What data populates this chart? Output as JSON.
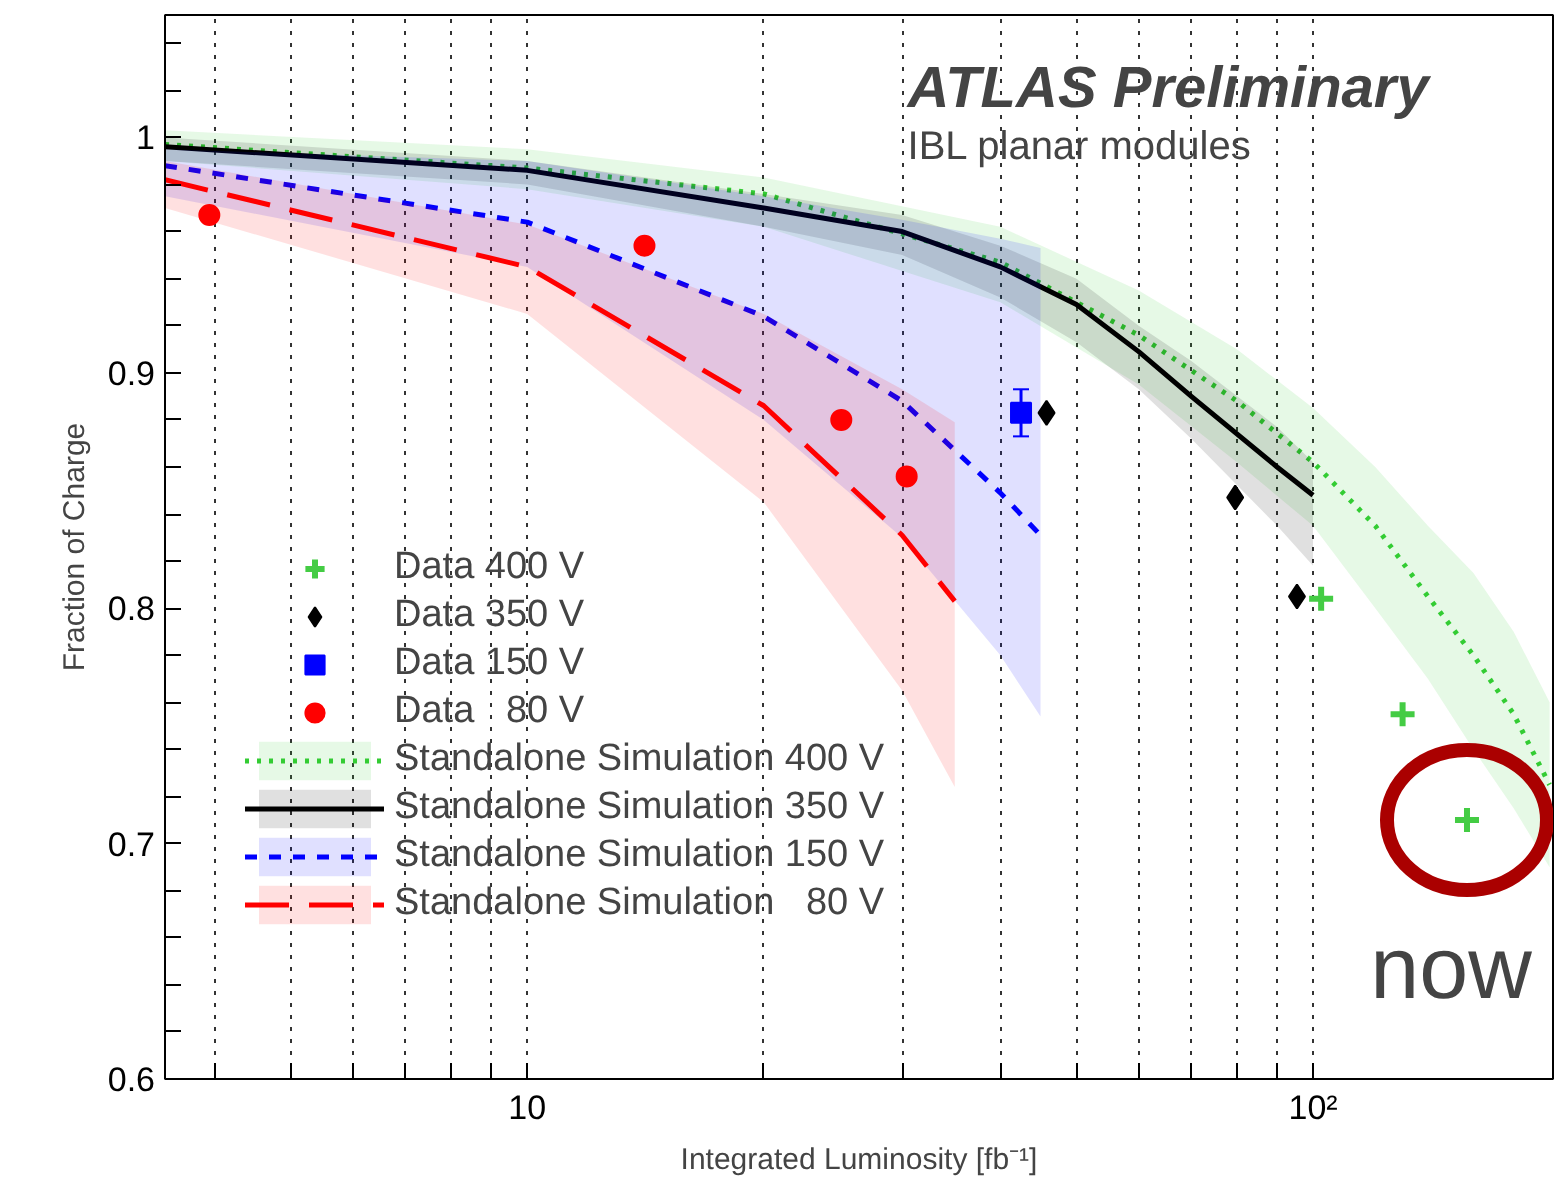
{
  "chart_data": {
    "type": "line",
    "xlabel": "Integrated Luminosity [fb⁻¹]",
    "ylabel": "Fraction of Charge",
    "log": "x",
    "grid": "x",
    "legend": "bottom left",
    "xlim": [
      3.46,
      202
    ],
    "ylim": [
      0.6,
      1.052
    ],
    "xticks": [
      {
        "value": 4,
        "label": null
      },
      {
        "value": 5,
        "label": null
      },
      {
        "value": 6,
        "label": null
      },
      {
        "value": 7,
        "label": null
      },
      {
        "value": 8,
        "label": null
      },
      {
        "value": 9,
        "label": null
      },
      10,
      {
        "value": 20,
        "label": null
      },
      {
        "value": 30,
        "label": null
      },
      {
        "value": 40,
        "label": null
      },
      {
        "value": 50,
        "label": null
      },
      {
        "value": 60,
        "label": null
      },
      {
        "value": 70,
        "label": null
      },
      {
        "value": 80,
        "label": null
      },
      {
        "value": 90,
        "label": null
      },
      {
        "value": 100,
        "label": "10²"
      }
    ],
    "yticks": [
      0.6,
      {
        "value": 0.62,
        "label": null
      },
      {
        "value": 0.64,
        "label": null
      },
      {
        "value": 0.66,
        "label": null
      },
      {
        "value": 0.68,
        "label": null
      },
      0.7,
      {
        "value": 0.72,
        "label": null
      },
      {
        "value": 0.74,
        "label": null
      },
      {
        "value": 0.76,
        "label": null
      },
      {
        "value": 0.78,
        "label": null
      },
      0.8,
      {
        "value": 0.82,
        "label": null
      },
      {
        "value": 0.84,
        "label": null
      },
      {
        "value": 0.86,
        "label": null
      },
      {
        "value": 0.88,
        "label": null
      },
      0.9,
      {
        "value": 0.92,
        "label": null
      },
      {
        "value": 0.94,
        "label": null
      },
      {
        "value": 0.96,
        "label": null
      },
      {
        "value": 0.98,
        "label": null
      },
      {
        "value": 1,
        "label": "1"
      },
      {
        "value": 1.02,
        "label": null
      },
      {
        "value": 1.04,
        "label": null
      }
    ],
    "series": [
      {
        "name": "Data 400 V",
        "type": "scatter",
        "marker": "cross",
        "color": "#44cc44",
        "x": [
          102.4,
          130,
          157
        ],
        "values": [
          0.804,
          0.755,
          0.71
        ]
      },
      {
        "name": "Data 350 V",
        "type": "scatter",
        "marker": "diamond",
        "color": "#000000",
        "x": [
          45.8,
          79.6,
          95.4
        ],
        "values": [
          0.883,
          0.847,
          0.805
        ]
      },
      {
        "name": "Data 150 V",
        "type": "scatter",
        "marker": "square",
        "color": "#0000ff",
        "x": [
          42.5
        ],
        "values": [
          0.883
        ],
        "errors": [
          0.01
        ]
      },
      {
        "name": "Data   80 V",
        "type": "scatter",
        "marker": "circle",
        "color": "#ff0000",
        "x": [
          3.94,
          14.1,
          25.1,
          30.4
        ],
        "values": [
          0.967,
          0.954,
          0.88,
          0.856
        ]
      },
      {
        "name": "Standalone Simulation 400 V",
        "line_style": "dotted",
        "color": "#33cc33",
        "x": [
          3.46,
          10,
          20,
          40,
          60,
          80,
          100,
          120,
          140,
          160,
          180,
          200
        ],
        "values": [
          0.997,
          0.987,
          0.976,
          0.947,
          0.916,
          0.888,
          0.862,
          0.835,
          0.805,
          0.78,
          0.755,
          0.725
        ],
        "lower": [
          0.99,
          0.978,
          0.962,
          0.93,
          0.895,
          0.862,
          0.835,
          0.8,
          0.77,
          0.74,
          0.715,
          0.69
        ],
        "upper": [
          1.003,
          0.995,
          0.983,
          0.962,
          0.935,
          0.91,
          0.885,
          0.86,
          0.835,
          0.815,
          0.79,
          0.76
        ]
      },
      {
        "name": "Standalone Simulation 350 V",
        "line_style": "solid",
        "color": "#000000",
        "x": [
          3.46,
          10,
          20,
          30,
          40,
          50,
          60,
          70,
          90,
          100
        ],
        "values": [
          0.996,
          0.986,
          0.97,
          0.96,
          0.945,
          0.929,
          0.909,
          0.89,
          0.86,
          0.848
        ],
        "lower": [
          0.99,
          0.98,
          0.962,
          0.95,
          0.932,
          0.913,
          0.893,
          0.872,
          0.835,
          0.818
        ],
        "upper": [
          1.0,
          0.99,
          0.976,
          0.967,
          0.954,
          0.94,
          0.92,
          0.905,
          0.877,
          0.862
        ]
      },
      {
        "name": "Standalone Simulation 150 V",
        "line_style": "dashed",
        "color": "#0000ff",
        "x": [
          3.46,
          10,
          20,
          30,
          40,
          45
        ],
        "values": [
          0.988,
          0.964,
          0.924,
          0.888,
          0.849,
          0.831
        ],
        "lower": [
          0.975,
          0.945,
          0.88,
          0.83,
          0.78,
          0.754
        ],
        "upper": [
          0.995,
          0.99,
          0.975,
          0.965,
          0.957,
          0.953
        ]
      },
      {
        "name": "Standalone Simulation   80 V",
        "line_style": "dashed",
        "color": "#ff0000",
        "x": [
          3.46,
          10,
          20,
          30,
          35
        ],
        "values": [
          0.982,
          0.945,
          0.886,
          0.831,
          0.803
        ],
        "lower": [
          0.97,
          0.925,
          0.845,
          0.765,
          0.724
        ],
        "upper": [
          0.99,
          0.963,
          0.925,
          0.893,
          0.879
        ]
      }
    ],
    "annotations": [
      "ATLAS Preliminary",
      "IBL planar modules",
      {
        "text": "now",
        "x": 157,
        "y": 0.71
      }
    ]
  }
}
